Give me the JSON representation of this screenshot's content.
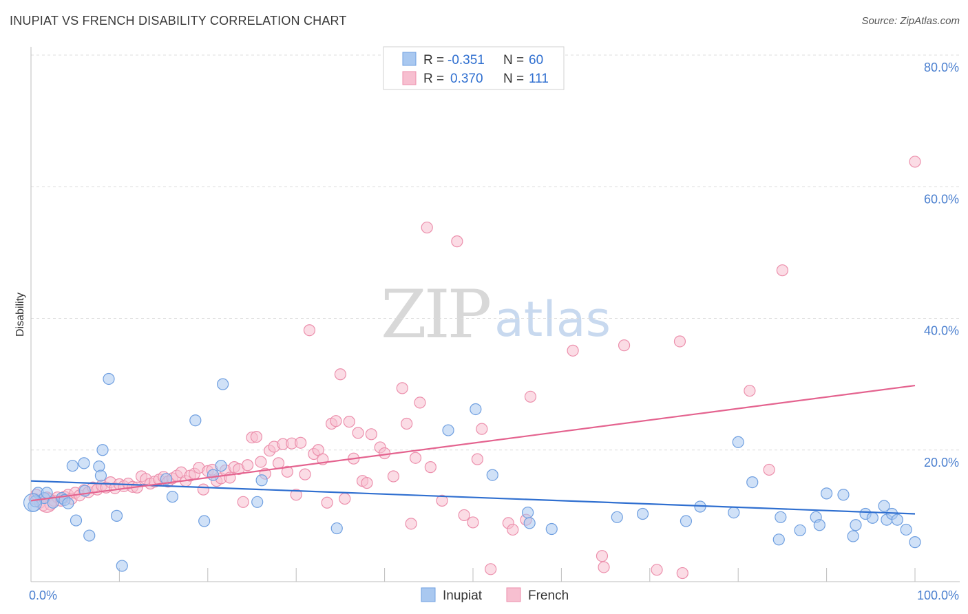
{
  "title": "INUPIAT VS FRENCH DISABILITY CORRELATION CHART",
  "source": "Source: ZipAtlas.com",
  "watermark": {
    "zip": "ZIP",
    "atlas": "atlas"
  },
  "legend": {
    "rows": [
      {
        "r_label": "R =",
        "r_value": "-0.351",
        "n_label": "N =",
        "n_value": "60"
      },
      {
        "r_label": "R =",
        "r_value": "0.370",
        "n_label": "N =",
        "n_value": "111"
      }
    ]
  },
  "colors": {
    "inupiat_fill": "#a9c8f0",
    "inupiat_stroke": "#6f9fe0",
    "inupiat_line": "#2f6fd0",
    "french_fill": "#f7bfd0",
    "french_stroke": "#ec8fac",
    "french_line": "#e4638f",
    "tick_text": "#4a7fcf",
    "grid": "#dcdcdc"
  },
  "chart_data": {
    "type": "scatter",
    "xlabel": "",
    "ylabel": "Disability",
    "xlim": [
      0,
      100
    ],
    "ylim": [
      0,
      80
    ],
    "x_tick_labels": [
      {
        "value": 0,
        "label": "0.0%"
      },
      {
        "value": 100,
        "label": "100.0%"
      }
    ],
    "y_tick_labels": [
      {
        "value": 20,
        "label": "20.0%"
      },
      {
        "value": 40,
        "label": "40.0%"
      },
      {
        "value": 60,
        "label": "60.0%"
      },
      {
        "value": 80,
        "label": "80.0%"
      }
    ],
    "grid": "horizontal dashed",
    "legend_position": "top-center",
    "series": [
      {
        "name": "Inupiat",
        "r": -0.351,
        "n": 60,
        "trend": {
          "x": [
            0,
            100
          ],
          "y": [
            15.3,
            10.3
          ]
        },
        "points": [
          [
            0.3,
            11.5
          ],
          [
            0.8,
            13.5
          ],
          [
            1.5,
            12.7
          ],
          [
            1.8,
            13.5
          ],
          [
            2.5,
            12.0
          ],
          [
            3.5,
            12.7
          ],
          [
            3.8,
            12.4
          ],
          [
            4.2,
            11.9
          ],
          [
            4.7,
            17.6
          ],
          [
            5.1,
            9.3
          ],
          [
            6.0,
            18.0
          ],
          [
            6.1,
            13.8
          ],
          [
            6.6,
            7.0
          ],
          [
            7.7,
            17.5
          ],
          [
            7.9,
            16.1
          ],
          [
            8.1,
            20.0
          ],
          [
            8.8,
            30.8
          ],
          [
            9.7,
            10.0
          ],
          [
            10.3,
            2.4
          ],
          [
            15.3,
            15.6
          ],
          [
            16.0,
            12.9
          ],
          [
            18.6,
            24.5
          ],
          [
            19.6,
            9.2
          ],
          [
            20.6,
            16.2
          ],
          [
            21.5,
            17.6
          ],
          [
            21.7,
            30.0
          ],
          [
            25.6,
            12.1
          ],
          [
            26.1,
            15.4
          ],
          [
            34.6,
            8.1
          ],
          [
            47.2,
            23.0
          ],
          [
            50.3,
            26.2
          ],
          [
            52.2,
            16.2
          ],
          [
            56.2,
            10.5
          ],
          [
            56.4,
            8.9
          ],
          [
            58.9,
            8.0
          ],
          [
            66.3,
            9.8
          ],
          [
            69.2,
            10.3
          ],
          [
            74.1,
            9.2
          ],
          [
            75.7,
            11.4
          ],
          [
            79.5,
            10.5
          ],
          [
            80.0,
            21.2
          ],
          [
            81.6,
            15.1
          ],
          [
            84.6,
            6.4
          ],
          [
            84.8,
            9.8
          ],
          [
            87.0,
            7.8
          ],
          [
            88.8,
            9.8
          ],
          [
            89.2,
            8.6
          ],
          [
            90.0,
            13.4
          ],
          [
            91.9,
            13.2
          ],
          [
            93.0,
            6.9
          ],
          [
            93.3,
            8.6
          ],
          [
            94.4,
            10.3
          ],
          [
            95.2,
            9.7
          ],
          [
            96.5,
            11.5
          ],
          [
            96.8,
            9.4
          ],
          [
            97.4,
            10.3
          ],
          [
            98.0,
            9.4
          ],
          [
            99.0,
            7.9
          ],
          [
            100.0,
            6.0
          ],
          [
            0.5,
            12.2
          ]
        ]
      },
      {
        "name": "French",
        "r": 0.37,
        "n": 111,
        "trend": {
          "x": [
            0,
            100
          ],
          "y": [
            12.3,
            29.8
          ]
        },
        "points": [
          [
            0.4,
            12.6
          ],
          [
            0.6,
            13.2
          ],
          [
            1.0,
            12.0
          ],
          [
            1.4,
            11.6
          ],
          [
            1.8,
            12.8
          ],
          [
            2.2,
            11.7
          ],
          [
            2.6,
            12.3
          ],
          [
            3.0,
            12.8
          ],
          [
            3.4,
            12.3
          ],
          [
            3.8,
            12.9
          ],
          [
            4.2,
            13.2
          ],
          [
            4.6,
            12.6
          ],
          [
            5.0,
            13.5
          ],
          [
            5.5,
            13.1
          ],
          [
            6.0,
            13.9
          ],
          [
            6.5,
            13.6
          ],
          [
            7.0,
            14.3
          ],
          [
            7.5,
            14.0
          ],
          [
            8.0,
            14.6
          ],
          [
            8.5,
            14.3
          ],
          [
            9.0,
            15.1
          ],
          [
            9.5,
            14.2
          ],
          [
            10.0,
            14.8
          ],
          [
            10.5,
            14.5
          ],
          [
            11.0,
            14.9
          ],
          [
            11.5,
            14.4
          ],
          [
            12.0,
            14.3
          ],
          [
            12.5,
            16.0
          ],
          [
            13.0,
            15.6
          ],
          [
            13.5,
            14.9
          ],
          [
            14.0,
            15.2
          ],
          [
            14.5,
            15.5
          ],
          [
            15.0,
            15.9
          ],
          [
            15.5,
            15.2
          ],
          [
            16.0,
            15.7
          ],
          [
            16.5,
            16.1
          ],
          [
            17.0,
            16.6
          ],
          [
            17.5,
            15.3
          ],
          [
            18.0,
            16.1
          ],
          [
            18.5,
            16.4
          ],
          [
            19.0,
            17.3
          ],
          [
            19.5,
            14.0
          ],
          [
            20.0,
            16.8
          ],
          [
            20.5,
            17.0
          ],
          [
            21.0,
            15.3
          ],
          [
            21.5,
            15.7
          ],
          [
            22.0,
            16.9
          ],
          [
            22.5,
            15.8
          ],
          [
            23.0,
            17.4
          ],
          [
            23.5,
            17.1
          ],
          [
            24.0,
            12.1
          ],
          [
            24.5,
            17.7
          ],
          [
            25.0,
            21.9
          ],
          [
            25.5,
            22.0
          ],
          [
            26.0,
            18.2
          ],
          [
            26.5,
            16.4
          ],
          [
            27.0,
            19.9
          ],
          [
            27.5,
            20.5
          ],
          [
            28.0,
            18.0
          ],
          [
            28.5,
            20.9
          ],
          [
            29.0,
            16.7
          ],
          [
            29.5,
            21.0
          ],
          [
            30.0,
            13.2
          ],
          [
            30.5,
            21.1
          ],
          [
            31.0,
            16.3
          ],
          [
            31.5,
            38.2
          ],
          [
            32.0,
            19.4
          ],
          [
            32.5,
            20.0
          ],
          [
            33.0,
            18.6
          ],
          [
            33.5,
            12.0
          ],
          [
            34.0,
            24.0
          ],
          [
            34.5,
            24.4
          ],
          [
            35.0,
            31.5
          ],
          [
            35.5,
            12.6
          ],
          [
            36.0,
            24.3
          ],
          [
            36.5,
            18.7
          ],
          [
            37.0,
            22.6
          ],
          [
            37.5,
            15.3
          ],
          [
            38.0,
            15.0
          ],
          [
            38.5,
            22.4
          ],
          [
            39.5,
            20.4
          ],
          [
            40.0,
            19.5
          ],
          [
            41.0,
            16.0
          ],
          [
            42.0,
            29.4
          ],
          [
            42.5,
            24.0
          ],
          [
            43.0,
            8.8
          ],
          [
            43.5,
            18.8
          ],
          [
            44.0,
            27.2
          ],
          [
            44.8,
            53.8
          ],
          [
            45.2,
            17.4
          ],
          [
            46.5,
            12.3
          ],
          [
            48.2,
            51.7
          ],
          [
            49.0,
            10.1
          ],
          [
            50.0,
            9.0
          ],
          [
            50.5,
            18.6
          ],
          [
            51.0,
            23.2
          ],
          [
            52.0,
            1.9
          ],
          [
            54.0,
            8.9
          ],
          [
            54.5,
            7.9
          ],
          [
            56.0,
            9.4
          ],
          [
            56.5,
            28.1
          ],
          [
            61.3,
            35.1
          ],
          [
            64.6,
            3.9
          ],
          [
            64.8,
            2.2
          ],
          [
            67.1,
            35.9
          ],
          [
            70.8,
            1.8
          ],
          [
            73.4,
            36.5
          ],
          [
            73.7,
            1.3
          ],
          [
            81.3,
            29.0
          ],
          [
            83.5,
            17.0
          ],
          [
            85.0,
            47.3
          ],
          [
            100.0,
            63.8
          ]
        ]
      }
    ]
  }
}
